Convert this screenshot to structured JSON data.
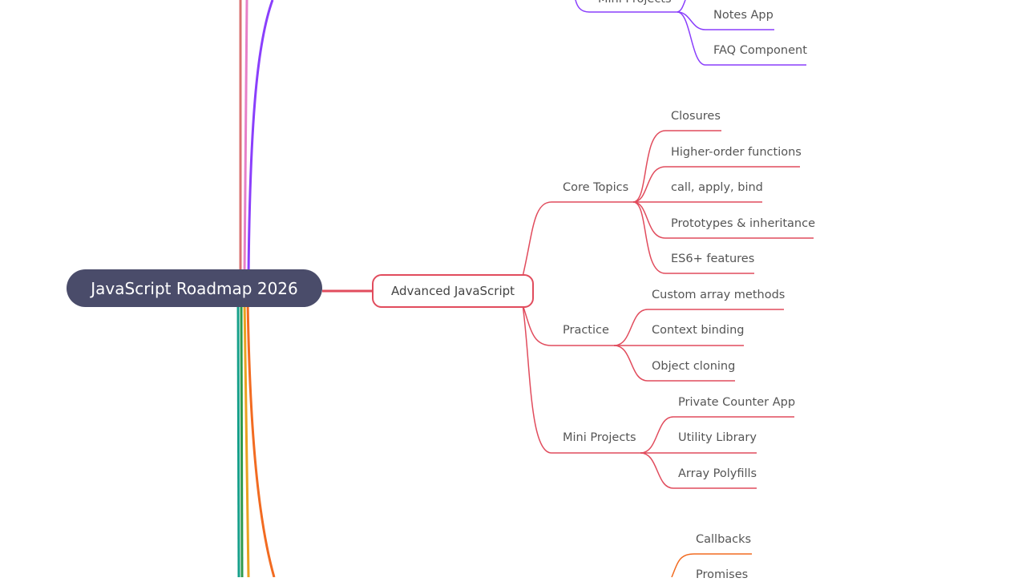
{
  "root": {
    "label": "JavaScript Roadmap 2026"
  },
  "top_branch": {
    "color": "#8a3ffc",
    "cut_label": "Mini Projects",
    "leaves": [
      "Notes App",
      "FAQ Component"
    ]
  },
  "advanced": {
    "label": "Advanced JavaScript",
    "color": "#e14c5d",
    "groups": [
      {
        "label": "Core Topics",
        "items": [
          "Closures",
          "Higher-order functions",
          "call, apply, bind",
          "Prototypes & inheritance",
          "ES6+ features"
        ]
      },
      {
        "label": "Practice",
        "items": [
          "Custom array methods",
          "Context binding",
          "Object cloning"
        ]
      },
      {
        "label": "Mini Projects",
        "items": [
          "Private Counter App",
          "Utility Library",
          "Array Polyfills"
        ]
      }
    ]
  },
  "bottom_branch": {
    "color": "#f26b21",
    "leaves": [
      "Callbacks",
      "Promises"
    ]
  },
  "trunk_colors": [
    "#d97070",
    "#e77fc8",
    "#8a3ffc",
    "#16a08a",
    "#2f9a4b",
    "#e9a11f",
    "#f26b21"
  ]
}
